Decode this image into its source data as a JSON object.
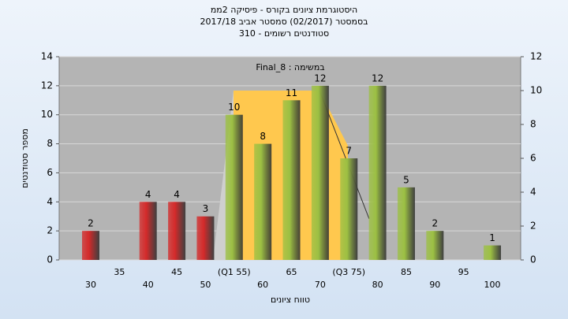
{
  "chart_data": {
    "type": "bar",
    "title": [
      "היסטוגרמת ציונים בקורס - פיסיקה 2ממ",
      "בסמסטר  (02/2017)  סמסטר אביב 2017/18",
      "סטודנטים רשומים - 310"
    ],
    "annotation": "Final_8 : במשימה",
    "x_label": "טווח ציונים",
    "y_label": "מספר סטודנטים",
    "categories": [
      "30",
      "35",
      "40",
      "45",
      "50",
      "(Q1 55)",
      "60",
      "65",
      "70",
      "(Q3 75)",
      "80",
      "85",
      "90",
      "95",
      "100"
    ],
    "values": [
      2,
      null,
      4,
      4,
      3,
      10,
      8,
      11,
      12,
      7,
      12,
      5,
      2,
      null,
      1
    ],
    "colors": [
      "#d42a2a",
      null,
      "#d42a2a",
      "#d42a2a",
      "#d42a2a",
      "#9cc043",
      "#9cc043",
      "#9cc043",
      "#9cc043",
      "#9cc043",
      "#9cc043",
      "#9cc043",
      "#9cc043",
      null,
      "#9cc043"
    ],
    "ylim": [
      0,
      14
    ],
    "yticks": [
      0,
      2,
      4,
      6,
      8,
      10,
      12,
      14
    ],
    "y2lim": [
      0,
      12
    ],
    "y2ticks": [
      0,
      2,
      4,
      6,
      8,
      10,
      12
    ],
    "grid": true
  }
}
